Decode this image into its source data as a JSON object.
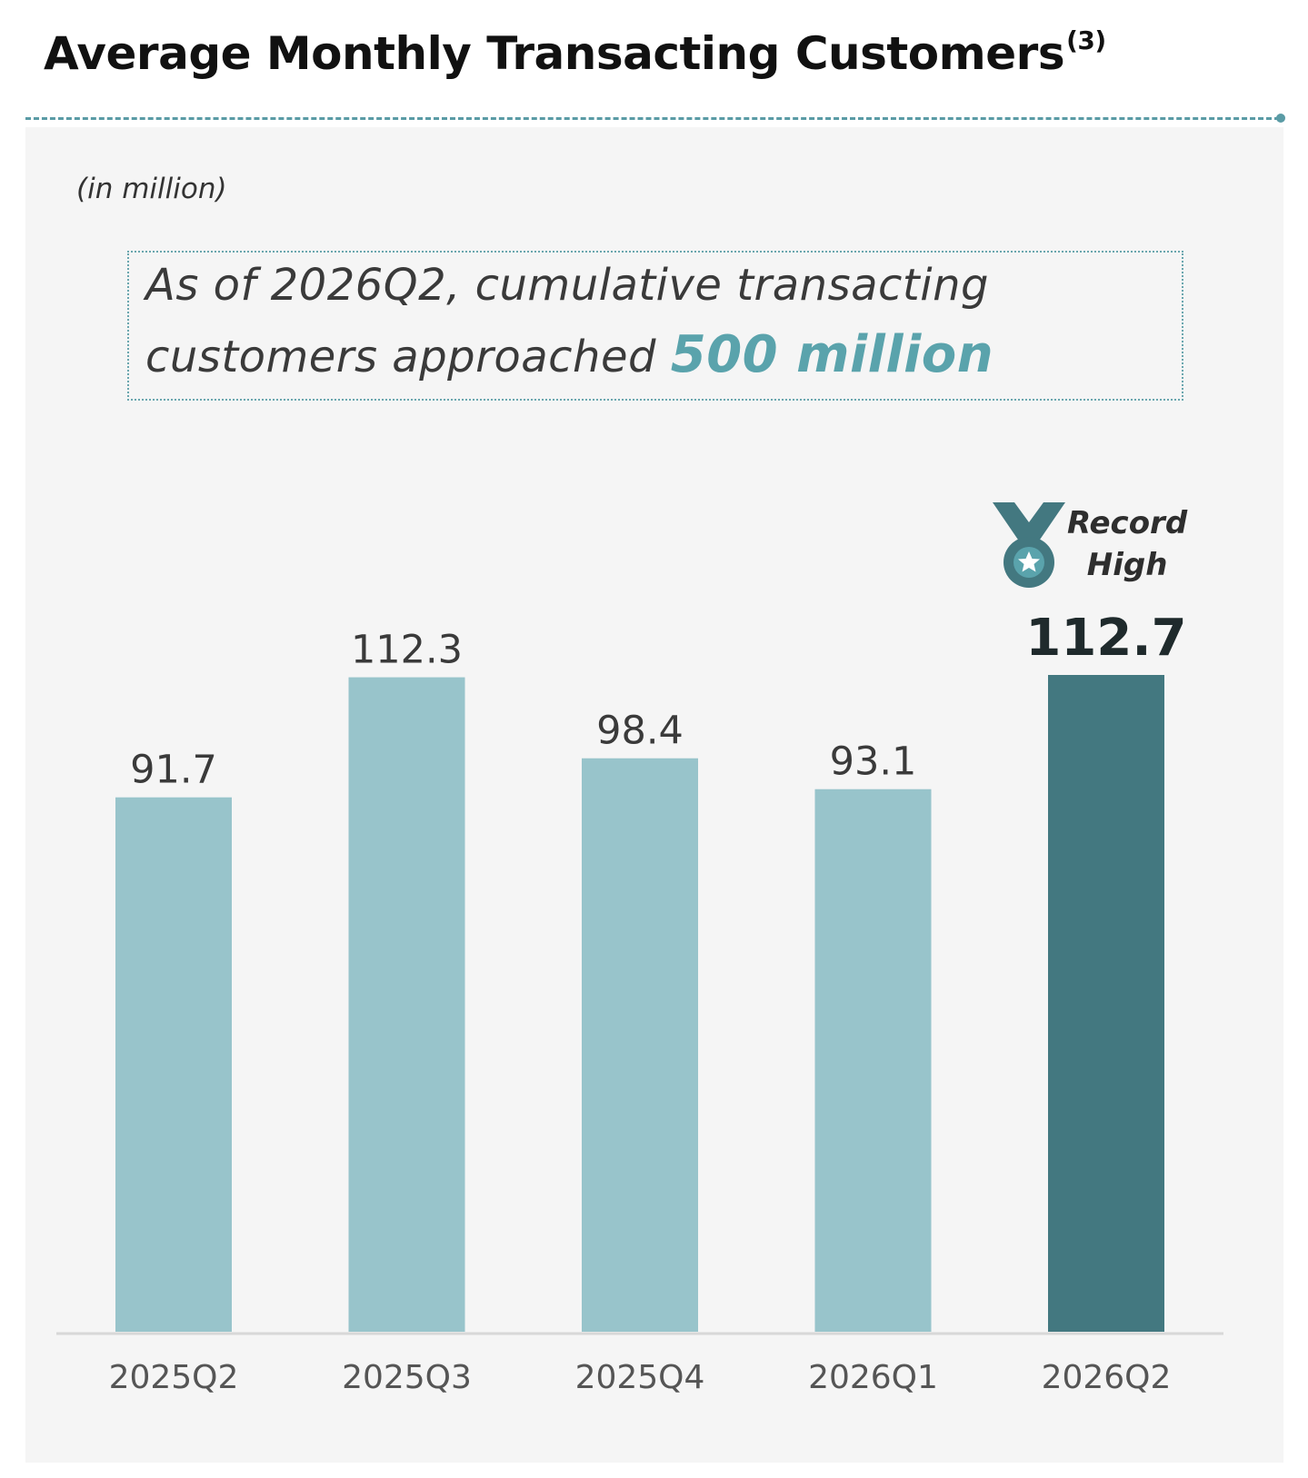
{
  "title": "Average Monthly Transacting Customers",
  "title_footnote": "(3)",
  "unit_note": "(in million)",
  "callout": {
    "line1": "As of 2026Q2, cumulative transacting",
    "line2_prefix": "customers approached ",
    "highlight": "500 million"
  },
  "badge": {
    "line1": "Record",
    "line2": "High",
    "icon": "medal-icon"
  },
  "colors": {
    "bar": "#98c4cb",
    "bar_highlight": "#437880",
    "accent": "#5aa3ac",
    "panel_bg": "#f5f5f5"
  },
  "chart_data": {
    "type": "bar",
    "categories": [
      "2025Q2",
      "2025Q3",
      "2025Q4",
      "2026Q1",
      "2026Q2"
    ],
    "values": [
      91.7,
      112.3,
      98.4,
      93.1,
      112.7
    ],
    "value_labels": [
      "91.7",
      "112.3",
      "98.4",
      "93.1",
      "112.7"
    ],
    "highlight_index": 4,
    "ylabel": "(in million)",
    "ylim": [
      0,
      112.7
    ],
    "grid": false,
    "legend": "none"
  }
}
